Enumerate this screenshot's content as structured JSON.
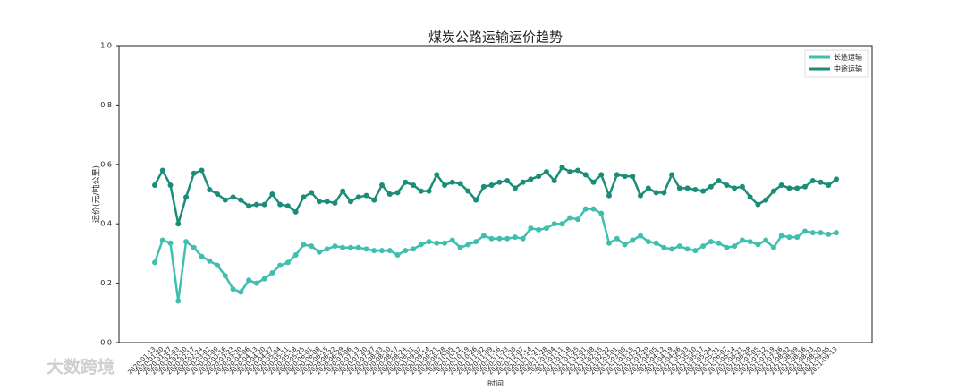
{
  "chart_data": {
    "type": "line",
    "title": "煤炭公路运输运价趋势",
    "y_label": "运价(元/吨公里)",
    "x_label": "时间",
    "watermark": "大数跨境",
    "categories": [
      "2020-01-13",
      "2020-01-20",
      "2020-01-27",
      "2020-02-03",
      "2020-02-10",
      "2020-02-17",
      "2020-02-24",
      "2020-03-02",
      "2020-03-09",
      "2020-03-16",
      "2020-03-23",
      "2020-03-30",
      "2020-04-06",
      "2020-04-13",
      "2020-04-20",
      "2020-04-27",
      "2020-05-04",
      "2020-05-11",
      "2020-05-18",
      "2020-05-25",
      "2020-06-01",
      "2020-06-08",
      "2020-06-15",
      "2020-06-22",
      "2020-06-29",
      "2020-07-06",
      "2020-07-13",
      "2020-07-20",
      "2020-07-27",
      "2020-08-03",
      "2020-08-10",
      "2020-08-17",
      "2020-08-24",
      "2020-08-31",
      "2020-09-07",
      "2020-09-14",
      "2020-09-21",
      "2020-09-28",
      "2020-10-05",
      "2020-10-12",
      "2020-10-19",
      "2020-10-26",
      "2020-11-02",
      "2020-11-09",
      "2020-11-16",
      "2020-11-23",
      "2020-11-30",
      "2020-12-07",
      "2020-12-14",
      "2020-12-21",
      "2020-12-28",
      "2021-01-04",
      "2021-01-11",
      "2021-01-18",
      "2021-01-25",
      "2021-02-01",
      "2021-02-08",
      "2021-02-15",
      "2021-02-22",
      "2021-03-01",
      "2021-03-08",
      "2021-03-15",
      "2021-03-22",
      "2021-03-29",
      "2021-04-05",
      "2021-04-12",
      "2021-04-19",
      "2021-04-26",
      "2021-05-03",
      "2021-05-10",
      "2021-05-17",
      "2021-05-24",
      "2021-05-31",
      "2021-06-07",
      "2021-06-14",
      "2021-06-21",
      "2021-06-28",
      "2021-07-05",
      "2021-07-12",
      "2021-07-19",
      "2021-07-26",
      "2021-08-02",
      "2021-08-09",
      "2021-08-16",
      "2021-08-23",
      "2021-08-30",
      "2021-09-06",
      "2021-09-13"
    ],
    "series": [
      {
        "name": "长途运输",
        "color": "#3fbfae",
        "values": [
          0.27,
          0.345,
          0.335,
          0.14,
          0.34,
          0.32,
          0.29,
          0.275,
          0.26,
          0.225,
          0.18,
          0.17,
          0.21,
          0.2,
          0.215,
          0.235,
          0.26,
          0.27,
          0.295,
          0.33,
          0.325,
          0.305,
          0.315,
          0.325,
          0.32,
          0.32,
          0.32,
          0.315,
          0.31,
          0.31,
          0.31,
          0.295,
          0.31,
          0.315,
          0.33,
          0.34,
          0.335,
          0.335,
          0.345,
          0.32,
          0.33,
          0.34,
          0.36,
          0.35,
          0.35,
          0.35,
          0.355,
          0.35,
          0.385,
          0.38,
          0.385,
          0.4,
          0.4,
          0.42,
          0.415,
          0.45,
          0.45,
          0.435,
          0.335,
          0.35,
          0.33,
          0.345,
          0.36,
          0.34,
          0.335,
          0.32,
          0.315,
          0.325,
          0.315,
          0.31,
          0.325,
          0.34,
          0.335,
          0.32,
          0.325,
          0.345,
          0.34,
          0.33,
          0.345,
          0.32,
          0.36,
          0.355,
          0.355,
          0.375,
          0.37,
          0.37,
          0.365,
          0.37
        ]
      },
      {
        "name": "中途运输",
        "color": "#1b8c78",
        "values": [
          0.53,
          0.58,
          0.53,
          0.4,
          0.49,
          0.57,
          0.58,
          0.515,
          0.5,
          0.48,
          0.49,
          0.48,
          0.46,
          0.465,
          0.465,
          0.5,
          0.465,
          0.46,
          0.44,
          0.49,
          0.505,
          0.475,
          0.475,
          0.47,
          0.51,
          0.475,
          0.49,
          0.495,
          0.48,
          0.53,
          0.5,
          0.505,
          0.54,
          0.53,
          0.51,
          0.51,
          0.565,
          0.53,
          0.54,
          0.535,
          0.51,
          0.48,
          0.525,
          0.53,
          0.54,
          0.545,
          0.52,
          0.54,
          0.55,
          0.56,
          0.575,
          0.545,
          0.59,
          0.575,
          0.58,
          0.565,
          0.54,
          0.565,
          0.495,
          0.565,
          0.56,
          0.56,
          0.495,
          0.52,
          0.505,
          0.505,
          0.565,
          0.52,
          0.52,
          0.515,
          0.51,
          0.525,
          0.545,
          0.53,
          0.52,
          0.525,
          0.49,
          0.465,
          0.48,
          0.51,
          0.53,
          0.52,
          0.52,
          0.525,
          0.545,
          0.54,
          0.53,
          0.55
        ]
      }
    ],
    "ylim": [
      0,
      1
    ],
    "yticks": [
      {
        "value": 0,
        "label": "0.0"
      },
      {
        "value": 0.2,
        "label": "0.2"
      },
      {
        "value": 0.4,
        "label": "0.4"
      },
      {
        "value": 0.6,
        "label": "0.6"
      },
      {
        "value": 0.8,
        "label": "0.8"
      },
      {
        "value": 1,
        "label": "1.0"
      }
    ],
    "grid": false,
    "legend": "upper-right"
  }
}
